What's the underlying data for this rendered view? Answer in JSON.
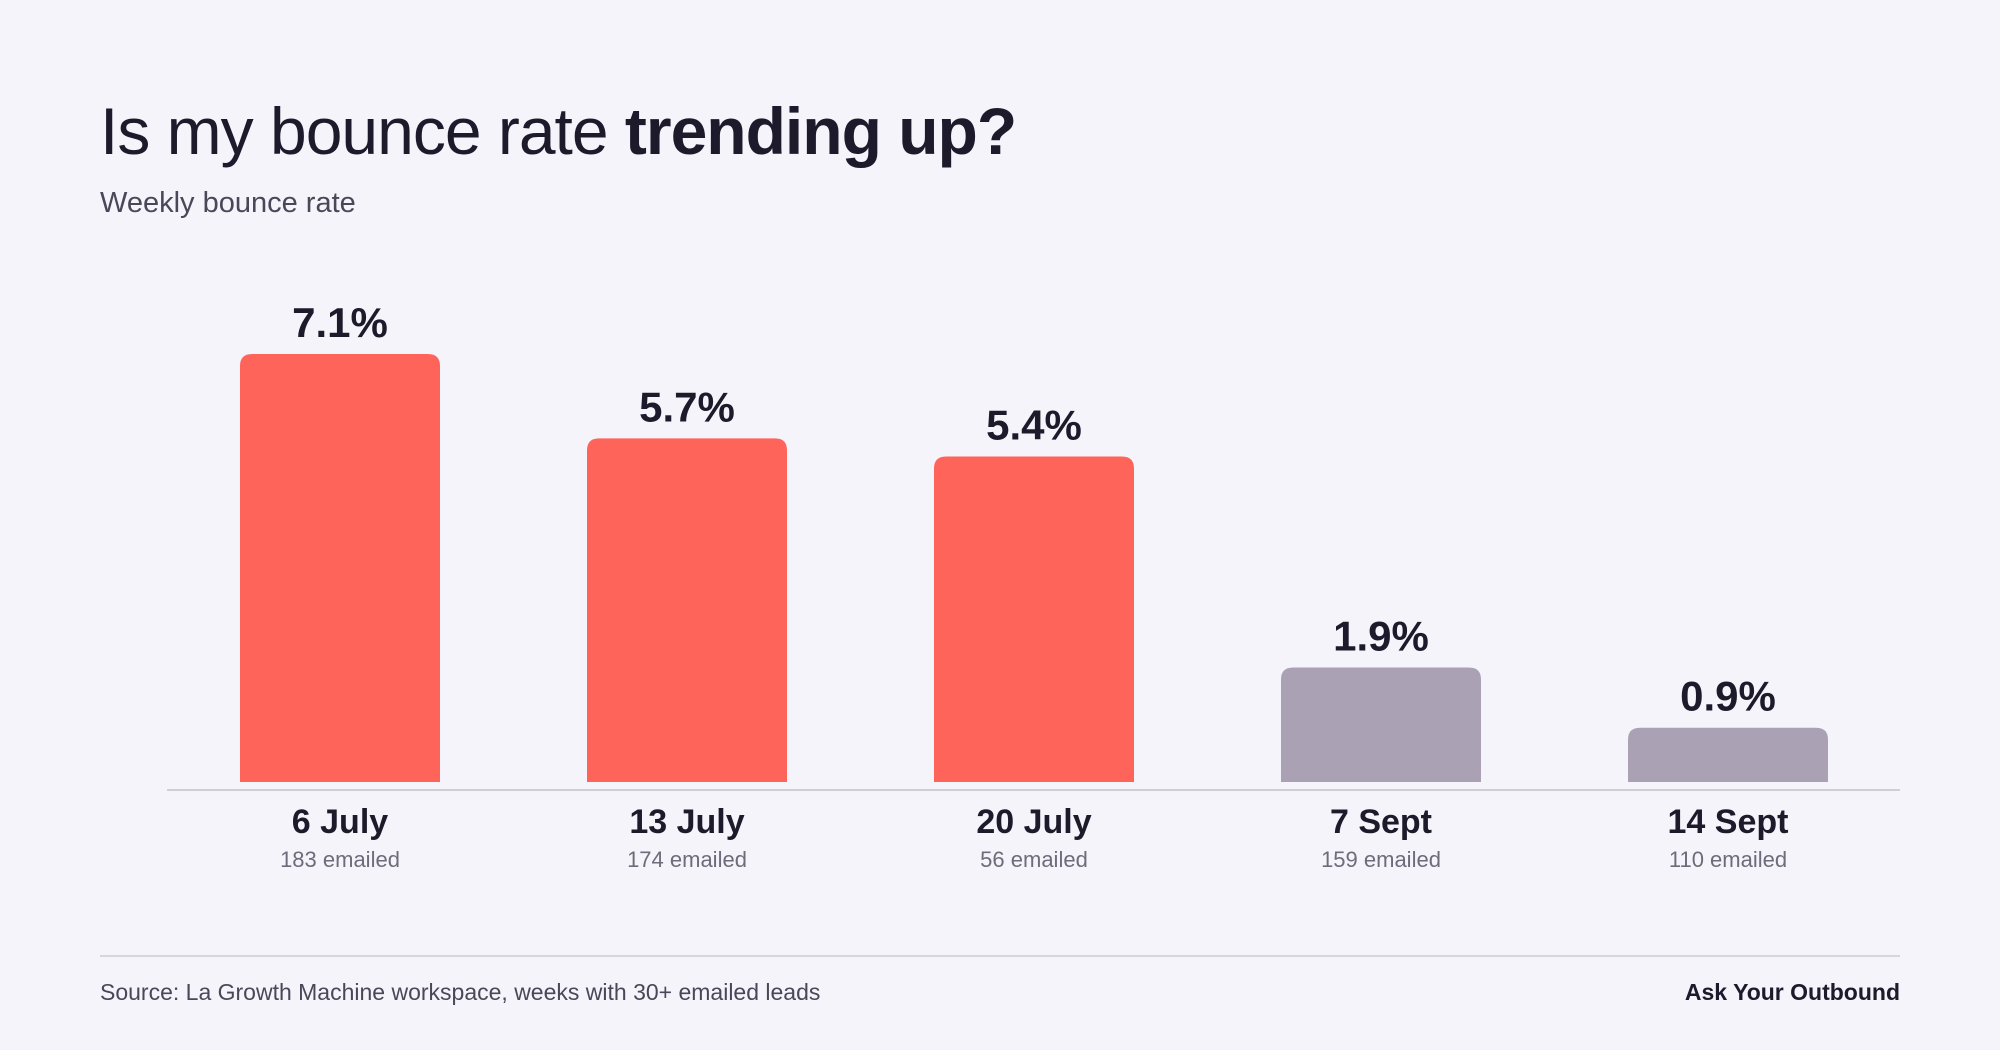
{
  "header": {
    "title_regular": "Is my bounce rate ",
    "title_bold": "trending up?",
    "subtitle": "Weekly bounce rate"
  },
  "chart_data": {
    "type": "bar",
    "title": "Is my bounce rate trending up?",
    "subtitle": "Weekly bounce rate",
    "xlabel": "",
    "ylabel": "",
    "ylim": [
      0,
      7.1
    ],
    "grid": false,
    "legend": "none",
    "categories": [
      "6 July",
      "13 July",
      "20 July",
      "7 Sept",
      "14 Sept"
    ],
    "category_sublabels": [
      "183 emailed",
      "174 emailed",
      "56 emailed",
      "159 emailed",
      "110 emailed"
    ],
    "values": [
      7.1,
      5.7,
      5.4,
      1.9,
      0.9
    ],
    "value_labels": [
      "7.1%",
      "5.7%",
      "5.4%",
      "1.9%",
      "0.9%"
    ],
    "bar_colors": [
      "#ff645a",
      "#ff645a",
      "#ff645a",
      "#aaa2b4",
      "#aaa2b4"
    ]
  },
  "colors": {
    "accent_red": "#ff645a",
    "muted_purple": "#aaa2b4",
    "background": "#f5f4fa",
    "text_dark": "#1d1a2b"
  },
  "footer": {
    "source": "Source: La Growth Machine workspace, weeks with 30+ emailed leads",
    "brand": "Ask Your Outbound"
  }
}
